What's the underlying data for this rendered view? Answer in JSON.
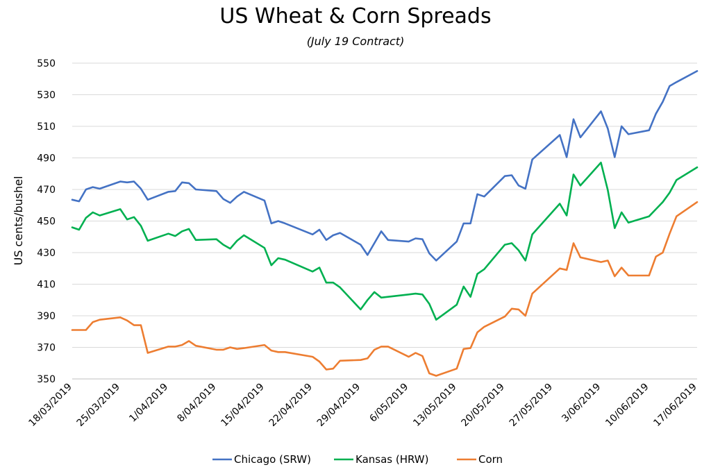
{
  "chart_data": {
    "type": "line",
    "title": "US Wheat & Corn Spreads",
    "subtitle": "(July 19 Contract)",
    "xlabel": "",
    "ylabel": "US cents/bushel",
    "ylim": [
      350,
      550
    ],
    "y_ticks": [
      350,
      370,
      390,
      410,
      430,
      450,
      470,
      490,
      510,
      530,
      550
    ],
    "x_ticks": [
      "18/03/2019",
      "25/03/2019",
      "1/04/2019",
      "8/04/2019",
      "15/04/2019",
      "22/04/2019",
      "29/04/2019",
      "6/05/2019",
      "13/05/2019",
      "20/05/2019",
      "27/05/2019",
      "3/06/2019",
      "10/06/2019",
      "17/06/2019"
    ],
    "grid": "horizontal",
    "legend_position": "bottom",
    "x": [
      "2019-03-18",
      "2019-03-19",
      "2019-03-20",
      "2019-03-21",
      "2019-03-22",
      "2019-03-25",
      "2019-03-26",
      "2019-03-27",
      "2019-03-28",
      "2019-03-29",
      "2019-04-01",
      "2019-04-02",
      "2019-04-03",
      "2019-04-04",
      "2019-04-05",
      "2019-04-08",
      "2019-04-09",
      "2019-04-10",
      "2019-04-11",
      "2019-04-12",
      "2019-04-15",
      "2019-04-16",
      "2019-04-17",
      "2019-04-18",
      "2019-04-22",
      "2019-04-23",
      "2019-04-24",
      "2019-04-25",
      "2019-04-26",
      "2019-04-29",
      "2019-04-30",
      "2019-05-01",
      "2019-05-02",
      "2019-05-03",
      "2019-05-06",
      "2019-05-07",
      "2019-05-08",
      "2019-05-09",
      "2019-05-10",
      "2019-05-13",
      "2019-05-14",
      "2019-05-15",
      "2019-05-16",
      "2019-05-17",
      "2019-05-20",
      "2019-05-21",
      "2019-05-22",
      "2019-05-23",
      "2019-05-24",
      "2019-05-28",
      "2019-05-29",
      "2019-05-30",
      "2019-05-31",
      "2019-06-03",
      "2019-06-04",
      "2019-06-05",
      "2019-06-06",
      "2019-06-07",
      "2019-06-10",
      "2019-06-11",
      "2019-06-12",
      "2019-06-13",
      "2019-06-14",
      "2019-06-17"
    ],
    "series": [
      {
        "name": "Chicago (SRW)",
        "color": "#4472C4",
        "values": [
          463.5,
          462.5,
          470,
          471.5,
          470.5,
          475,
          474.5,
          475,
          470.5,
          463.5,
          468.5,
          469,
          474.5,
          474,
          470,
          469,
          464,
          461.5,
          465.5,
          468.5,
          463,
          448.5,
          450,
          448.5,
          441.5,
          444.5,
          438,
          441,
          442.5,
          435,
          428.5,
          436,
          443.5,
          438,
          437,
          439,
          438.5,
          429.5,
          425,
          437,
          448.5,
          448.5,
          467,
          465.5,
          478.5,
          479,
          472.5,
          470.5,
          489,
          504.5,
          490.5,
          514.5,
          503,
          519.5,
          508.5,
          490.5,
          510,
          505,
          507.5,
          518,
          525.5,
          535.5,
          538,
          545
        ]
      },
      {
        "name": "Kansas (HRW)",
        "color": "#00B050",
        "values": [
          446,
          444.5,
          452,
          455.5,
          453.5,
          457.5,
          451,
          452.5,
          447,
          437.5,
          442,
          440.5,
          443.5,
          445,
          438,
          438.5,
          435,
          432.5,
          437.5,
          441,
          433,
          422,
          426.5,
          425.5,
          418,
          420.5,
          411,
          411,
          408,
          394,
          400,
          405,
          401.5,
          402,
          403.5,
          404,
          403.5,
          397.5,
          387.5,
          397,
          408.5,
          402,
          416.5,
          419.5,
          435,
          436,
          431.5,
          425,
          441.5,
          461,
          453.5,
          479.5,
          472.5,
          487,
          469.5,
          445.5,
          455.5,
          449,
          453,
          457.5,
          462,
          468,
          476,
          484
        ]
      },
      {
        "name": "Corn",
        "color": "#ED7D31",
        "values": [
          381,
          381,
          381,
          386,
          387.5,
          389,
          387,
          384,
          384,
          366.5,
          370.5,
          370.5,
          371.5,
          374,
          371,
          368.5,
          368.5,
          370,
          369,
          369.5,
          371.5,
          368,
          367,
          367,
          364,
          361,
          356,
          356.5,
          361.5,
          362,
          363,
          368.5,
          370.5,
          370.5,
          364,
          366.5,
          364.5,
          353.5,
          352,
          356.5,
          369,
          369.5,
          379.5,
          383,
          389.5,
          394.5,
          394,
          390,
          404,
          420,
          419,
          436,
          427,
          424,
          425,
          415,
          420.5,
          415.5,
          415.5,
          427.5,
          430,
          442,
          453,
          462
        ]
      }
    ]
  }
}
